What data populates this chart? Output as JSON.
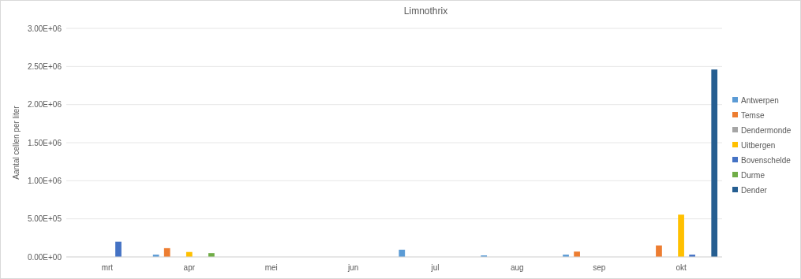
{
  "chart_data": {
    "type": "bar",
    "title": "Limnothrix",
    "ylabel": "Aantal cellen per liter",
    "categories": [
      "mrt",
      "apr",
      "mei",
      "jun",
      "jul",
      "aug",
      "sep",
      "okt"
    ],
    "series": [
      {
        "name": "Antwerpen",
        "color": "#5b9bd5",
        "values": [
          null,
          30000,
          null,
          null,
          95000,
          20000,
          30000,
          null
        ]
      },
      {
        "name": "Temse",
        "color": "#ed7d31",
        "values": [
          null,
          115000,
          null,
          null,
          null,
          null,
          70000,
          150000
        ]
      },
      {
        "name": "Dendermonde",
        "color": "#a5a5a5",
        "values": [
          null,
          null,
          null,
          null,
          null,
          null,
          null,
          null
        ]
      },
      {
        "name": "Uitbergen",
        "color": "#ffc000",
        "values": [
          null,
          65000,
          null,
          null,
          null,
          null,
          null,
          555000
        ]
      },
      {
        "name": "Bovenschelde",
        "color": "#4472c4",
        "values": [
          200000,
          null,
          null,
          null,
          null,
          null,
          null,
          30000
        ]
      },
      {
        "name": "Durme",
        "color": "#70ad47",
        "values": [
          null,
          50000,
          null,
          null,
          null,
          null,
          null,
          null
        ]
      },
      {
        "name": "Dender",
        "color": "#255e91",
        "values": [
          null,
          null,
          null,
          null,
          null,
          null,
          null,
          2460000
        ]
      }
    ],
    "ylim": [
      0,
      3000000
    ],
    "yticks": [
      {
        "value": 0,
        "label": "0.00E+00"
      },
      {
        "value": 500000,
        "label": "5.00E+05"
      },
      {
        "value": 1000000,
        "label": "1.00E+06"
      },
      {
        "value": 1500000,
        "label": "1.50E+06"
      },
      {
        "value": 2000000,
        "label": "2.00E+06"
      },
      {
        "value": 2500000,
        "label": "2.50E+06"
      },
      {
        "value": 3000000,
        "label": "3.00E+06"
      }
    ],
    "grid": "y",
    "legend": "right"
  }
}
